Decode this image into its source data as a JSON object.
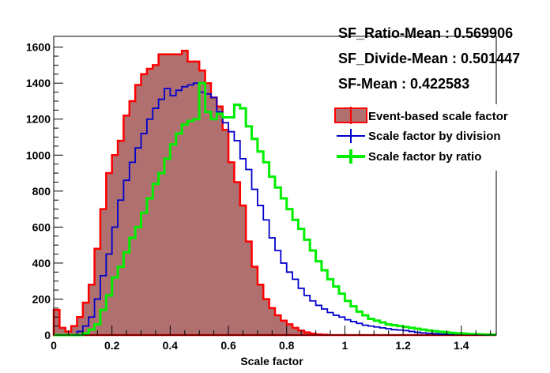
{
  "stats": {
    "ratio_mean": "SF_Ratio-Mean : 0.569906",
    "divide_mean": "SF_Divide-Mean : 0.501447",
    "sf_mean": "SF-Mean : 0.422583"
  },
  "chart_data": {
    "type": "histogram",
    "xlabel": "Scale factor",
    "ylabel": "",
    "xlim": [
      0,
      1.52
    ],
    "ylim": [
      0,
      1660
    ],
    "xticks": [
      "0",
      "0.2",
      "0.4",
      "0.6",
      "0.8",
      "1",
      "1.2",
      "1.4"
    ],
    "yticks": [
      "0",
      "200",
      "400",
      "600",
      "800",
      "1000",
      "1200",
      "1400",
      "1600"
    ],
    "legend": {
      "position": "top-right"
    },
    "series": [
      {
        "name": "Event-based scale factor",
        "style": "filled",
        "color": "#ff0000",
        "fill": "#b07070",
        "points": [
          [
            0.0,
            140
          ],
          [
            0.02,
            40
          ],
          [
            0.04,
            20
          ],
          [
            0.06,
            50
          ],
          [
            0.08,
            100
          ],
          [
            0.1,
            180
          ],
          [
            0.12,
            280
          ],
          [
            0.14,
            480
          ],
          [
            0.16,
            700
          ],
          [
            0.18,
            900
          ],
          [
            0.2,
            1000
          ],
          [
            0.22,
            1080
          ],
          [
            0.24,
            1220
          ],
          [
            0.26,
            1300
          ],
          [
            0.28,
            1390
          ],
          [
            0.3,
            1450
          ],
          [
            0.32,
            1480
          ],
          [
            0.34,
            1500
          ],
          [
            0.36,
            1560
          ],
          [
            0.38,
            1560
          ],
          [
            0.4,
            1560
          ],
          [
            0.42,
            1560
          ],
          [
            0.44,
            1580
          ],
          [
            0.46,
            1520
          ],
          [
            0.48,
            1520
          ],
          [
            0.5,
            1470
          ],
          [
            0.52,
            1400
          ],
          [
            0.54,
            1320
          ],
          [
            0.56,
            1270
          ],
          [
            0.58,
            1140
          ],
          [
            0.6,
            960
          ],
          [
            0.62,
            850
          ],
          [
            0.64,
            720
          ],
          [
            0.66,
            520
          ],
          [
            0.68,
            380
          ],
          [
            0.7,
            280
          ],
          [
            0.72,
            200
          ],
          [
            0.74,
            150
          ],
          [
            0.76,
            110
          ],
          [
            0.78,
            80
          ],
          [
            0.8,
            60
          ],
          [
            0.82,
            40
          ],
          [
            0.84,
            25
          ],
          [
            0.86,
            15
          ],
          [
            0.88,
            8
          ],
          [
            0.9,
            4
          ],
          [
            0.92,
            2
          ],
          [
            0.94,
            0
          ],
          [
            1.5,
            0
          ]
        ]
      },
      {
        "name": "Scale factor by division",
        "style": "step",
        "color": "#0000cc",
        "points": [
          [
            0.0,
            0
          ],
          [
            0.02,
            0
          ],
          [
            0.04,
            0
          ],
          [
            0.06,
            0
          ],
          [
            0.08,
            20
          ],
          [
            0.1,
            50
          ],
          [
            0.12,
            100
          ],
          [
            0.14,
            200
          ],
          [
            0.16,
            330
          ],
          [
            0.18,
            450
          ],
          [
            0.2,
            600
          ],
          [
            0.22,
            750
          ],
          [
            0.24,
            860
          ],
          [
            0.26,
            960
          ],
          [
            0.28,
            1040
          ],
          [
            0.3,
            1120
          ],
          [
            0.32,
            1200
          ],
          [
            0.34,
            1260
          ],
          [
            0.36,
            1310
          ],
          [
            0.38,
            1370
          ],
          [
            0.4,
            1330
          ],
          [
            0.42,
            1360
          ],
          [
            0.44,
            1380
          ],
          [
            0.46,
            1390
          ],
          [
            0.48,
            1400
          ],
          [
            0.5,
            1350
          ],
          [
            0.52,
            1340
          ],
          [
            0.54,
            1320
          ],
          [
            0.56,
            1240
          ],
          [
            0.58,
            1180
          ],
          [
            0.6,
            1130
          ],
          [
            0.62,
            1080
          ],
          [
            0.64,
            980
          ],
          [
            0.66,
            920
          ],
          [
            0.68,
            810
          ],
          [
            0.7,
            720
          ],
          [
            0.72,
            640
          ],
          [
            0.74,
            540
          ],
          [
            0.76,
            470
          ],
          [
            0.78,
            400
          ],
          [
            0.8,
            350
          ],
          [
            0.82,
            310
          ],
          [
            0.84,
            260
          ],
          [
            0.86,
            220
          ],
          [
            0.88,
            190
          ],
          [
            0.9,
            165
          ],
          [
            0.92,
            145
          ],
          [
            0.94,
            125
          ],
          [
            0.96,
            110
          ],
          [
            0.98,
            100
          ],
          [
            1.0,
            85
          ],
          [
            1.02,
            75
          ],
          [
            1.04,
            65
          ],
          [
            1.06,
            55
          ],
          [
            1.08,
            50
          ],
          [
            1.1,
            45
          ],
          [
            1.12,
            40
          ],
          [
            1.14,
            35
          ],
          [
            1.16,
            30
          ],
          [
            1.18,
            28
          ],
          [
            1.2,
            25
          ],
          [
            1.22,
            20
          ],
          [
            1.24,
            15
          ],
          [
            1.26,
            12
          ],
          [
            1.28,
            10
          ],
          [
            1.3,
            8
          ],
          [
            1.32,
            6
          ],
          [
            1.34,
            5
          ],
          [
            1.36,
            4
          ],
          [
            1.38,
            3
          ],
          [
            1.4,
            2
          ],
          [
            1.42,
            2
          ],
          [
            1.44,
            1
          ],
          [
            1.46,
            1
          ],
          [
            1.48,
            0
          ],
          [
            1.5,
            0
          ]
        ]
      },
      {
        "name": "Scale factor by ratio",
        "style": "step",
        "color": "#00ee00",
        "points": [
          [
            0.0,
            0
          ],
          [
            0.02,
            0
          ],
          [
            0.04,
            0
          ],
          [
            0.06,
            0
          ],
          [
            0.08,
            0
          ],
          [
            0.1,
            10
          ],
          [
            0.12,
            30
          ],
          [
            0.14,
            60
          ],
          [
            0.16,
            140
          ],
          [
            0.18,
            220
          ],
          [
            0.2,
            320
          ],
          [
            0.22,
            380
          ],
          [
            0.24,
            460
          ],
          [
            0.26,
            540
          ],
          [
            0.28,
            600
          ],
          [
            0.3,
            680
          ],
          [
            0.32,
            760
          ],
          [
            0.34,
            840
          ],
          [
            0.36,
            900
          ],
          [
            0.38,
            980
          ],
          [
            0.4,
            1060
          ],
          [
            0.42,
            1120
          ],
          [
            0.44,
            1170
          ],
          [
            0.46,
            1190
          ],
          [
            0.48,
            1200
          ],
          [
            0.5,
            1400
          ],
          [
            0.52,
            1240
          ],
          [
            0.54,
            1200
          ],
          [
            0.56,
            1230
          ],
          [
            0.58,
            1210
          ],
          [
            0.6,
            1210
          ],
          [
            0.62,
            1280
          ],
          [
            0.64,
            1260
          ],
          [
            0.66,
            1160
          ],
          [
            0.68,
            1090
          ],
          [
            0.7,
            1020
          ],
          [
            0.72,
            960
          ],
          [
            0.74,
            880
          ],
          [
            0.76,
            820
          ],
          [
            0.78,
            760
          ],
          [
            0.8,
            700
          ],
          [
            0.82,
            640
          ],
          [
            0.84,
            590
          ],
          [
            0.86,
            530
          ],
          [
            0.88,
            470
          ],
          [
            0.9,
            410
          ],
          [
            0.92,
            360
          ],
          [
            0.94,
            310
          ],
          [
            0.96,
            270
          ],
          [
            0.98,
            230
          ],
          [
            1.0,
            190
          ],
          [
            1.02,
            160
          ],
          [
            1.04,
            130
          ],
          [
            1.06,
            110
          ],
          [
            1.08,
            90
          ],
          [
            1.1,
            80
          ],
          [
            1.12,
            70
          ],
          [
            1.14,
            60
          ],
          [
            1.16,
            55
          ],
          [
            1.18,
            50
          ],
          [
            1.2,
            45
          ],
          [
            1.22,
            40
          ],
          [
            1.24,
            35
          ],
          [
            1.26,
            30
          ],
          [
            1.28,
            26
          ],
          [
            1.3,
            22
          ],
          [
            1.32,
            18
          ],
          [
            1.34,
            15
          ],
          [
            1.36,
            12
          ],
          [
            1.38,
            10
          ],
          [
            1.4,
            8
          ],
          [
            1.42,
            6
          ],
          [
            1.44,
            5
          ],
          [
            1.46,
            4
          ],
          [
            1.48,
            3
          ],
          [
            1.5,
            2
          ]
        ]
      }
    ]
  }
}
